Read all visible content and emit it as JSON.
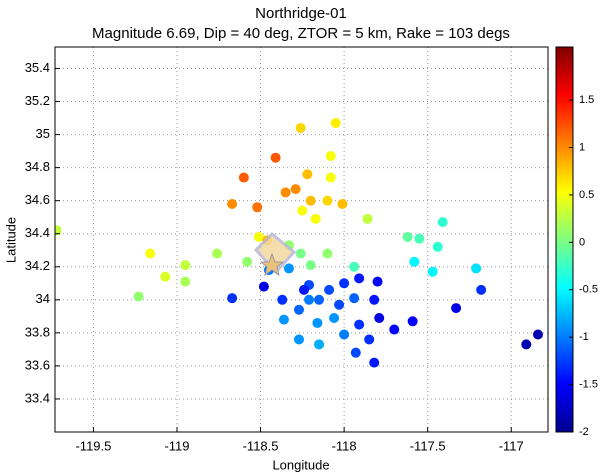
{
  "chart_data": {
    "type": "scatter",
    "title": "Northridge-01",
    "subtitle": "Magnitude 6.69, Dip = 40 deg, ZTOR = 5 km, Rake = 103 degs",
    "xlabel": "Longitude",
    "ylabel": "Latitude",
    "xlim": [
      -119.73,
      -116.78
    ],
    "xticks": [
      -119.5,
      -119,
      -118.5,
      -118,
      -117.5,
      -117
    ],
    "ylim": [
      33.2,
      35.53
    ],
    "yticks": [
      33.4,
      33.6,
      33.8,
      34,
      34.2,
      34.4,
      34.6,
      34.8,
      35,
      35.2,
      35.4
    ],
    "grid": true,
    "colormap": "jet",
    "clim": [
      -2,
      2.06
    ],
    "cticks": [
      -2,
      -1.5,
      -1,
      -0.5,
      0,
      0.5,
      1,
      1.5
    ],
    "x": [
      -119.72,
      -119.16,
      -118.95,
      -118.95,
      -119.07,
      -119.23,
      -118.76,
      -118.67,
      -118.6,
      -118.52,
      -118.41,
      -118.35,
      -118.29,
      -118.26,
      -118.05,
      -118.08,
      -118.08,
      -118.22,
      -118.2,
      -118.1,
      -118.01,
      -118.17,
      -118.25,
      -118.51,
      -118.58,
      -118.46,
      -118.33,
      -118.26,
      -118.2,
      -118.1,
      -117.94,
      -117.86,
      -117.62,
      -117.55,
      -117.41,
      -117.44,
      -117.58,
      -117.47,
      -117.21,
      -117.18,
      -117.33,
      -117.59,
      -116.91,
      -116.84,
      -118.67,
      -118.48,
      -118.37,
      -118.27,
      -118.21,
      -118.09,
      -118.0,
      -117.91,
      -117.8,
      -117.82,
      -117.94,
      -118.06,
      -118.16,
      -118.27,
      -118.15,
      -118.0,
      -117.91,
      -117.79,
      -117.85,
      -117.93,
      -117.82,
      -117.7,
      -118.45,
      -118.33,
      -118.21,
      -118.36,
      -118.03,
      -118.15,
      -118.24
    ],
    "values": [
      34.42,
      34.28,
      34.21,
      34.11,
      34.14,
      34.02,
      34.28,
      34.58,
      34.74,
      34.56,
      34.86,
      34.65,
      34.67,
      35.04,
      35.07,
      34.87,
      34.74,
      34.76,
      34.6,
      34.6,
      34.58,
      34.49,
      34.54,
      34.38,
      34.23,
      34.36,
      34.33,
      34.28,
      34.21,
      34.28,
      34.2,
      34.49,
      34.38,
      34.37,
      34.47,
      34.32,
      34.23,
      34.17,
      34.19,
      34.06,
      33.95,
      33.87,
      33.73,
      33.79,
      34.01,
      34.08,
      34.0,
      33.94,
      34.09,
      34.06,
      34.1,
      34.13,
      34.11,
      34.0,
      34.01,
      33.89,
      33.86,
      33.76,
      33.73,
      33.79,
      33.85,
      33.89,
      33.76,
      33.68,
      33.62,
      33.82,
      34.18,
      34.19,
      34.0,
      33.88,
      33.97,
      34.0,
      34.06
    ],
    "c": [
      0.3,
      0.5,
      0.3,
      0.2,
      0.4,
      0.1,
      0.2,
      1.0,
      1.2,
      1.1,
      1.2,
      1.0,
      1.0,
      0.7,
      0.6,
      0.5,
      0.5,
      0.8,
      0.8,
      0.7,
      0.8,
      0.5,
      0.5,
      0.5,
      0.1,
      0.8,
      0.1,
      0,
      0,
      0.1,
      -0.2,
      0.3,
      -0.1,
      -0.2,
      -0.3,
      -0.3,
      -0.5,
      -0.5,
      -0.6,
      -1.3,
      -1.6,
      -1.5,
      -1.8,
      -1.8,
      -1.3,
      -1.6,
      -1.3,
      -1.1,
      -1.2,
      -1.2,
      -1.3,
      -1.4,
      -1.5,
      -1.4,
      -1.1,
      -0.9,
      -0.9,
      -0.9,
      -0.8,
      -1.0,
      -1.3,
      -1.6,
      -1.3,
      -1.2,
      -1.4,
      -1.5,
      -1.0,
      -0.9,
      -1.0,
      -0.9,
      -1.2,
      -1.1,
      -1.4
    ]
  }
}
